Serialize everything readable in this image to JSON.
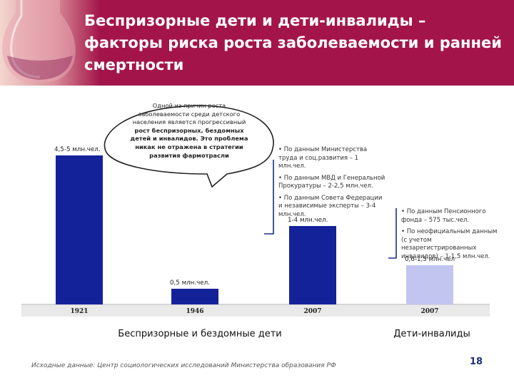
{
  "title": "Беспризорные дети и дети-инвалиды – факторы риска роста заболеваемости и ранней смертности",
  "bubble": {
    "text": "Одной из причин роста заболеваемости среди детского населения является прогрессивный",
    "bold": "рост беспризорных, бездомных детей и инвалидов. Это проблема никак не отражена в стратегии развития фармотрасли"
  },
  "notes_mid": [
    "• По данным Министерства труда и соц.развития – 1 млн.чел.",
    "• По данным МВД и Генеральной Прокуратуры – 2-2,5 млн.чел.",
    "• По данным Совета Федерации и независимые эксперты – 3-4 млн.чел."
  ],
  "notes_right": [
    "• По данным Пенсионного фонда – 575 тыс.чел.",
    "• По неофициальным данным (с учетом незарегистрированных инвалидов) – 1-1,5 млн.чел."
  ],
  "group_labels": [
    "Беспризорные и бездомные дети",
    "Дети-инвалиды"
  ],
  "source": "Исходные данные: Центр социологических исследований Министерства образования РФ",
  "page_number": "18",
  "colors": {
    "header": "#a3154a",
    "bar_dark": "#14229a",
    "bar_light": "#c2c5ef",
    "bracket": "#1a2f7a"
  },
  "chart_data": {
    "type": "bar",
    "categories": [
      "1921",
      "1946",
      "2007",
      "2007"
    ],
    "values": [
      4.75,
      0.5,
      2.5,
      1.25
    ],
    "value_labels": [
      "4,5-5 млн.чел.",
      "0,5 млн.чел.",
      "1-4 млн.чел.",
      "0,6-1,5 млн.чел"
    ],
    "bar_colors": [
      "#14229a",
      "#14229a",
      "#14229a",
      "#c2c5ef"
    ],
    "ylim": [
      0,
      5
    ],
    "grid": false
  }
}
